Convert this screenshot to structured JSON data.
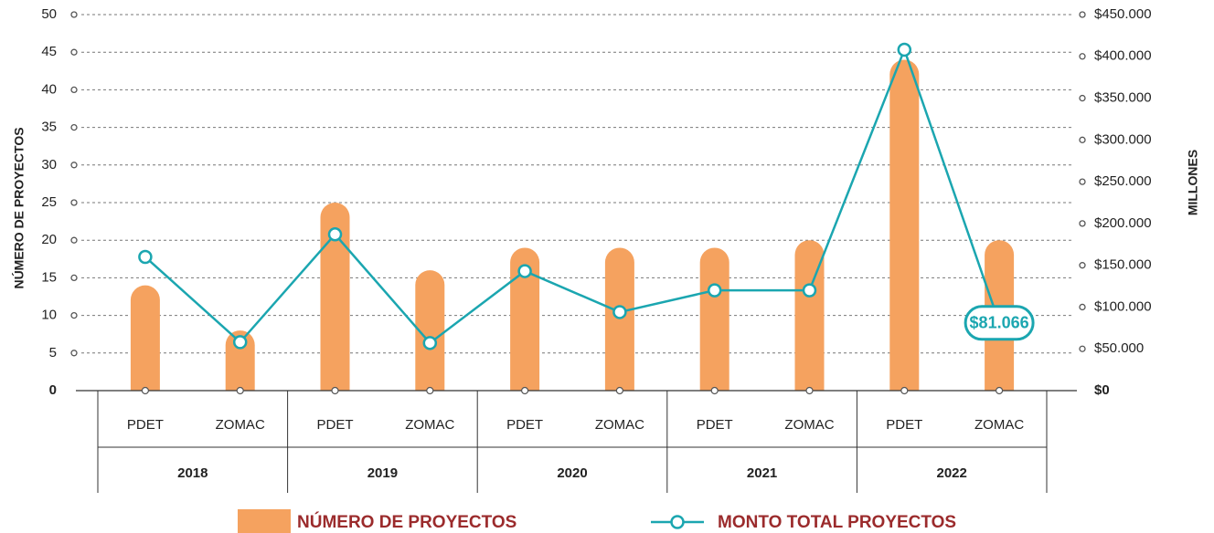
{
  "chart_data": {
    "type": "bar_line",
    "y_label": "NÚMERO DE PROYECTOS",
    "y2_label": "MILLONES",
    "categories": [
      "PDET",
      "ZOMAC",
      "PDET",
      "ZOMAC",
      "PDET",
      "ZOMAC",
      "PDET",
      "ZOMAC",
      "PDET",
      "ZOMAC"
    ],
    "groups": [
      "2018",
      "2019",
      "2020",
      "2021",
      "2022"
    ],
    "series": [
      {
        "name": "NÚMERO DE PROYECTOS",
        "color": "#f5a25f",
        "type": "bar",
        "values": [
          14,
          8,
          25,
          16,
          19,
          19,
          19,
          20,
          44,
          20
        ]
      },
      {
        "name": "MONTO TOTAL PROYECTOS",
        "color": "#1ba6b0",
        "type": "line",
        "axis": "y2",
        "values": [
          160000,
          58000,
          187000,
          57000,
          143000,
          94000,
          120000,
          120000,
          408000,
          81066
        ],
        "value_labels": [
          null,
          null,
          null,
          null,
          null,
          null,
          null,
          null,
          null,
          "$81.066"
        ]
      }
    ],
    "ylim": [
      0,
      50
    ],
    "yticks": [
      0,
      5,
      10,
      15,
      20,
      25,
      30,
      35,
      40,
      45,
      50
    ],
    "y2lim": [
      0,
      450000
    ],
    "y2ticks": [
      {
        "value": 0,
        "label": "$0"
      },
      {
        "value": 50000,
        "label": "$50.000"
      },
      {
        "value": 100000,
        "label": "$100.000"
      },
      {
        "value": 150000,
        "label": "$150.000"
      },
      {
        "value": 200000,
        "label": "$200.000"
      },
      {
        "value": 250000,
        "label": "$250.000"
      },
      {
        "value": 300000,
        "label": "$300.000"
      },
      {
        "value": 350000,
        "label": "$350.000"
      },
      {
        "value": 400000,
        "label": "$400.000"
      },
      {
        "value": 450000,
        "label": "$450.000"
      }
    ],
    "grid": true
  }
}
